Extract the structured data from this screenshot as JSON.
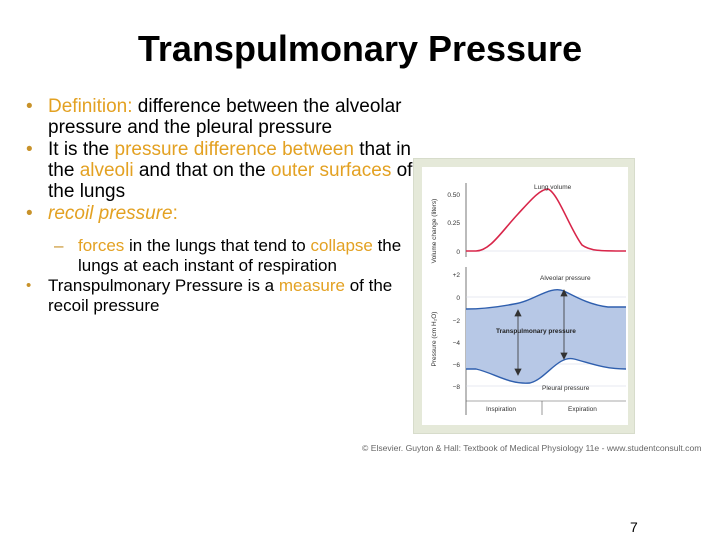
{
  "slide": {
    "title": "Transpulmonary Pressure",
    "page_number": "7"
  },
  "bullets": {
    "b1_label": "Definition:",
    "b1_text": " difference between the alveolar pressure and the pleural pressure",
    "b2_pre": "It is the ",
    "b2_acc1": "pressure difference between",
    "b2_mid1": " that in the ",
    "b2_acc2": "alveoli",
    "b2_mid2": " and that on the ",
    "b2_acc3": "outer surfaces",
    "b2_post": " of the lungs",
    "b3_italic": "recoil pressure",
    "b3_colon": ":",
    "sub_acc1": "forces",
    "sub_mid": " in the lungs that tend to ",
    "sub_acc2": "collapse",
    "sub_post": " the lungs at each instant of respiration",
    "b4_pre": "Transpulmonary Pressure is a ",
    "b4_acc": "measure",
    "b4_post": " of the recoil pressure"
  },
  "figure": {
    "caption": "© Elsevier. Guyton & Hall: Textbook of Medical Physiology 11e - www.studentconsult.com",
    "top_ylabel": "Volume change (liters)",
    "bottom_ylabel": "Pressure (cm H₂O)",
    "top_ticks": [
      "0.50",
      "0.25",
      "0"
    ],
    "bottom_ticks": [
      "+2",
      "0",
      "−2",
      "−4",
      "−6",
      "−8"
    ],
    "label_lung_volume": "Lung volume",
    "label_alveolar": "Alveolar pressure",
    "label_transpulmonary": "Transpulmonary pressure",
    "label_pleural": "Pleural pressure",
    "label_inspiration": "Inspiration",
    "label_expiration": "Expiration",
    "colors": {
      "volume_curve": "#d8264a",
      "pressure_curve": "#2f5fae",
      "band_fill": "#b7c8e6",
      "panel_bg": "#ffffff",
      "frame_bg": "#e5e9d9",
      "accent_text": "#e3a122"
    }
  }
}
